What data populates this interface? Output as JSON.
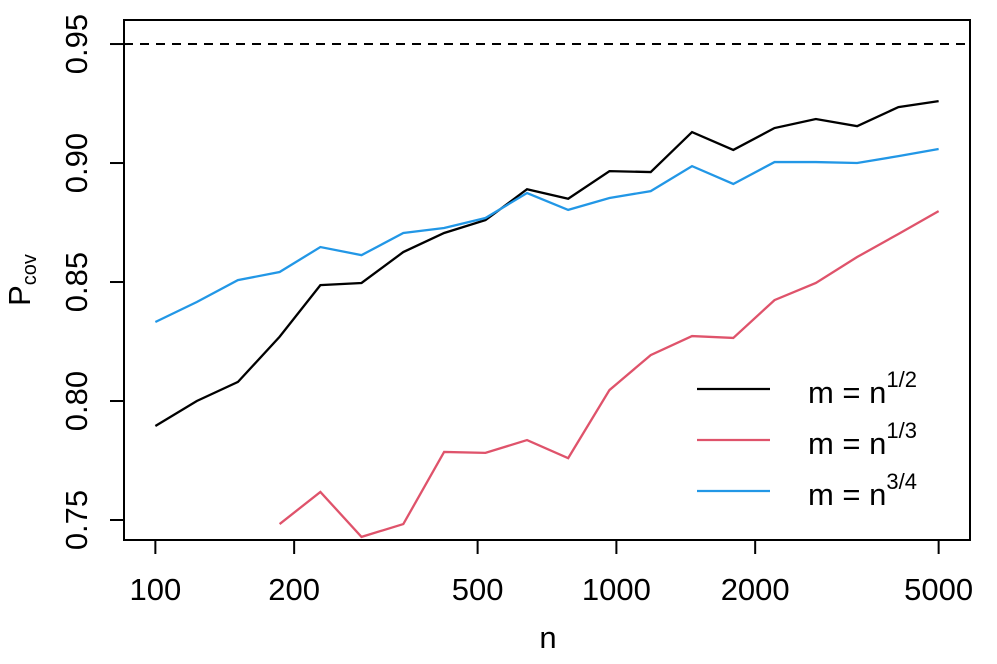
{
  "chart_data": {
    "type": "line",
    "xlabel": "n",
    "ylabel": "P",
    "ylabel_sub": "cov",
    "x": [
      100,
      123,
      151,
      186,
      228,
      280,
      345,
      423,
      520,
      640,
      786,
      966,
      1187,
      1459,
      1793,
      2203,
      2708,
      3328,
      4090,
      5000
    ],
    "series": [
      {
        "name": "m = n",
        "exponent": "1/2",
        "color": "#000000",
        "values": [
          0.7895,
          0.8,
          0.808,
          0.827,
          0.8487,
          0.8496,
          0.8626,
          0.8706,
          0.876,
          0.889,
          0.885,
          0.8966,
          0.8962,
          0.913,
          0.9055,
          0.9147,
          0.9185,
          0.9155,
          0.9235,
          0.926
        ]
      },
      {
        "name": "m = n",
        "exponent": "1/3",
        "color": "#df536b",
        "values": [
          null,
          null,
          null,
          0.7483,
          0.7618,
          0.7429,
          0.7483,
          0.7786,
          0.7782,
          0.7836,
          0.776,
          0.8046,
          0.8193,
          0.8273,
          0.8265,
          0.8424,
          0.8496,
          0.8605,
          0.8702,
          0.8798
        ]
      },
      {
        "name": "m = n",
        "exponent": "3/4",
        "color": "#2297e6",
        "values": [
          0.8332,
          0.8416,
          0.8508,
          0.8542,
          0.8647,
          0.8613,
          0.8706,
          0.8727,
          0.8769,
          0.8874,
          0.8803,
          0.8853,
          0.8882,
          0.8987,
          0.8912,
          0.9004,
          0.9004,
          0.9,
          0.9029,
          0.9059
        ]
      }
    ],
    "xlog": true,
    "xlim": [
      85.5,
      5848
    ],
    "xticks": [
      100,
      200,
      500,
      1000,
      2000,
      5000
    ],
    "ylim": [
      0.7416,
      0.9601
    ],
    "yticks": [
      0.75,
      {
        "value": 0.8,
        "label": "0.80"
      },
      0.85,
      {
        "value": 0.9,
        "label": "0.90"
      },
      0.95
    ],
    "hline": 0.95,
    "legend": "bottom-right"
  }
}
